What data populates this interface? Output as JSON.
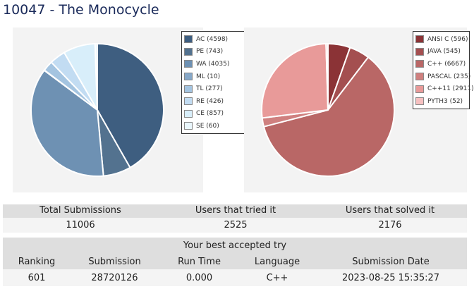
{
  "problem": {
    "title": "10047 - The Monocycle"
  },
  "verdict_chart": {
    "legend": [
      {
        "label": "AC (4598)",
        "value": 4598,
        "color": "#3e5e80"
      },
      {
        "label": "PE (743)",
        "value": 743,
        "color": "#53728f"
      },
      {
        "label": "WA (4035)",
        "value": 4035,
        "color": "#6e91b3"
      },
      {
        "label": "ML (10)",
        "value": 10,
        "color": "#87a8c8"
      },
      {
        "label": "TL (277)",
        "value": 277,
        "color": "#a4c4e0"
      },
      {
        "label": "RE (426)",
        "value": 426,
        "color": "#c2dcf2"
      },
      {
        "label": "CE (857)",
        "value": 857,
        "color": "#d8eefa"
      },
      {
        "label": "SE (60)",
        "value": 60,
        "color": "#eaf7fd"
      }
    ]
  },
  "language_chart": {
    "legend": [
      {
        "label": "ANSI C (596)",
        "value": 596,
        "color": "#8b3336"
      },
      {
        "label": "JAVA (545)",
        "value": 545,
        "color": "#a44f50"
      },
      {
        "label": "C++ (6667)",
        "value": 6667,
        "color": "#b96766"
      },
      {
        "label": "PASCAL (235)",
        "value": 235,
        "color": "#cf807f"
      },
      {
        "label": "C++11 (2911)",
        "value": 2911,
        "color": "#e89a99"
      },
      {
        "label": "PYTH3 (52)",
        "value": 52,
        "color": "#f6c0c0"
      }
    ]
  },
  "stats": {
    "total_submissions_label": "Total Submissions",
    "users_tried_label": "Users that tried it",
    "users_solved_label": "Users that solved it",
    "total_submissions": "11006",
    "users_tried": "2525",
    "users_solved": "2176"
  },
  "best_try": {
    "heading": "Your best accepted try",
    "ranking_label": "Ranking",
    "submission_label": "Submission",
    "runtime_label": "Run Time",
    "language_label": "Language",
    "date_label": "Submission Date",
    "ranking": "601",
    "submission": "28720126",
    "runtime": "0.000",
    "language": "C++",
    "date": "2023-08-25 15:35:27"
  }
}
